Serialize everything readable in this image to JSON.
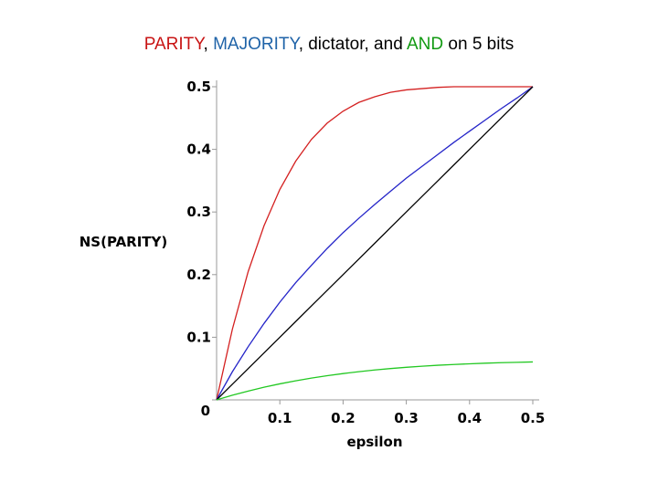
{
  "chart_data": {
    "type": "line",
    "title_parts": [
      {
        "text": "PARITY",
        "color": "#c81414"
      },
      {
        "text": ", ",
        "color": "#000000"
      },
      {
        "text": "MAJORITY",
        "color": "#1f63a8"
      },
      {
        "text": ", dictator, and ",
        "color": "#000000"
      },
      {
        "text": "AND",
        "color": "#129a12"
      },
      {
        "text": " on 5 bits",
        "color": "#000000"
      }
    ],
    "x_label": "epsilon",
    "y_label": "NS(PARITY)",
    "x": [
      0,
      0.025,
      0.05,
      0.075,
      0.1,
      0.125,
      0.15,
      0.175,
      0.2,
      0.225,
      0.25,
      0.275,
      0.3,
      0.325,
      0.35,
      0.375,
      0.4,
      0.425,
      0.45,
      0.475,
      0.5
    ],
    "series": [
      {
        "color": "#d42020",
        "values": [
          0,
          0.113,
          0.205,
          0.278,
          0.336,
          0.381,
          0.416,
          0.442,
          0.461,
          0.475,
          0.484,
          0.491,
          0.495,
          0.497,
          0.499,
          0.5,
          0.5,
          0.5,
          0.5,
          0.5,
          0.5
        ]
      },
      {
        "color": "#2424c8",
        "values": [
          0,
          0.045,
          0.085,
          0.122,
          0.156,
          0.187,
          0.215,
          0.242,
          0.267,
          0.29,
          0.312,
          0.333,
          0.354,
          0.373,
          0.392,
          0.411,
          0.429,
          0.447,
          0.465,
          0.482,
          0.5
        ]
      },
      {
        "color": "#000000",
        "values": [
          0,
          0.025,
          0.05,
          0.075,
          0.1,
          0.125,
          0.15,
          0.175,
          0.2,
          0.225,
          0.25,
          0.275,
          0.3,
          0.325,
          0.35,
          0.375,
          0.4,
          0.425,
          0.45,
          0.475,
          0.5
        ]
      },
      {
        "color": "#22c822",
        "values": [
          0,
          0.0074,
          0.0141,
          0.0202,
          0.0256,
          0.0304,
          0.0348,
          0.0386,
          0.042,
          0.045,
          0.0477,
          0.05,
          0.052,
          0.0537,
          0.0553,
          0.0565,
          0.0576,
          0.0586,
          0.0594,
          0.06,
          0.0606
        ]
      }
    ],
    "xlim": [
      0,
      0.5
    ],
    "ylim": [
      0,
      0.5
    ],
    "xticks": [
      0.1,
      0.2,
      0.3,
      0.4,
      0.5
    ],
    "yticks": [
      0,
      0.1,
      0.2,
      0.3,
      0.4,
      0.5
    ]
  }
}
